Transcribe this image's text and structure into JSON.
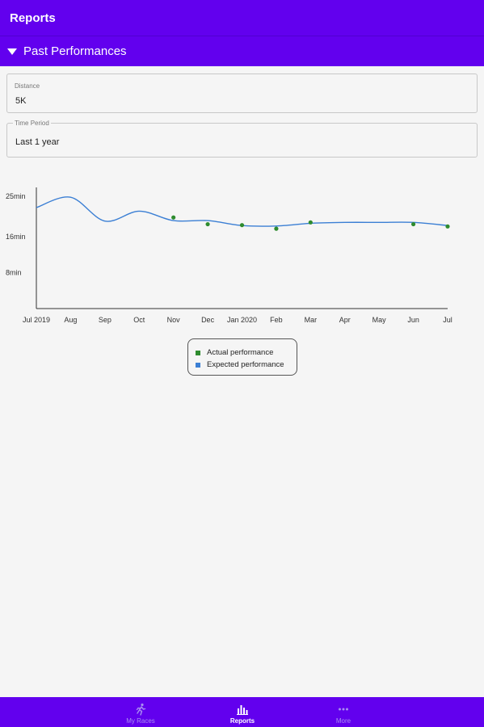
{
  "topbar": {
    "title": "Reports"
  },
  "section": {
    "title": "Past Performances"
  },
  "fields": {
    "distance": {
      "label": "Distance",
      "value": "5K"
    },
    "period": {
      "label": "Time Period",
      "value": "Last 1 year"
    }
  },
  "colors": {
    "primary": "#6200ee",
    "actual": "#2e8b2e",
    "expected": "#3b7fd4"
  },
  "chart_data": {
    "type": "line",
    "x": [
      "Jul 2019",
      "Aug",
      "Sep",
      "Oct",
      "Nov",
      "Dec",
      "Jan 2020",
      "Feb",
      "Mar",
      "Apr",
      "May",
      "Jun",
      "Jul"
    ],
    "y_ticks": [
      "25min",
      "16min",
      "8min"
    ],
    "y_tick_values": [
      25,
      16,
      8
    ],
    "ylim": [
      0,
      27
    ],
    "series": [
      {
        "name": "Expected performance",
        "type": "line",
        "x_index": [
          0,
          1,
          2,
          3,
          4,
          5,
          6,
          7,
          8,
          9,
          10,
          11,
          12
        ],
        "values": [
          22.5,
          24.8,
          19.5,
          21.7,
          19.6,
          19.6,
          18.5,
          18.4,
          19.0,
          19.2,
          19.2,
          19.2,
          18.5
        ]
      },
      {
        "name": "Actual performance",
        "type": "scatter",
        "x_index": [
          4,
          5,
          6,
          7,
          8,
          11,
          12
        ],
        "values": [
          20.3,
          18.8,
          18.6,
          17.8,
          19.2,
          18.8,
          18.3
        ]
      }
    ],
    "legend": [
      "Actual performance",
      "Expected performance"
    ]
  },
  "nav": {
    "items": [
      {
        "label": "My Races"
      },
      {
        "label": "Reports"
      },
      {
        "label": "More"
      }
    ]
  }
}
